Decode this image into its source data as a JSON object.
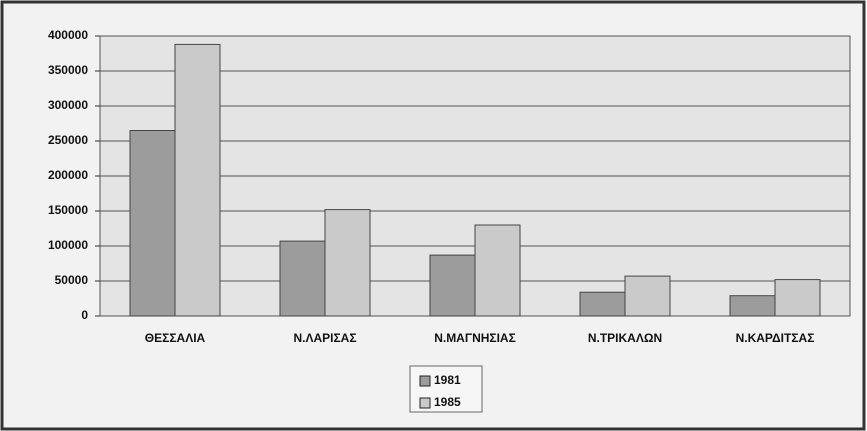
{
  "chart_data": {
    "type": "bar",
    "categories": [
      "ΘΕΣΣΑΛΙΑ",
      "Ν.ΛΑΡΙΣΑΣ",
      "Ν.ΜΑΓΝΗΣΙΑΣ",
      "Ν.ΤΡΙΚΑΛΩΝ",
      "Ν.ΚΑΡΔΙΤΣΑΣ"
    ],
    "series": [
      {
        "name": "1981",
        "color": "#9c9c9c",
        "values": [
          265000,
          107000,
          87000,
          34000,
          29000
        ]
      },
      {
        "name": "1985",
        "color": "#cacaca",
        "values": [
          388000,
          152000,
          130000,
          57000,
          52000
        ]
      }
    ],
    "ylim": [
      0,
      400000
    ],
    "yticks": [
      0,
      50000,
      100000,
      150000,
      200000,
      250000,
      300000,
      350000,
      400000
    ],
    "grid": true,
    "legend": "bottom"
  }
}
